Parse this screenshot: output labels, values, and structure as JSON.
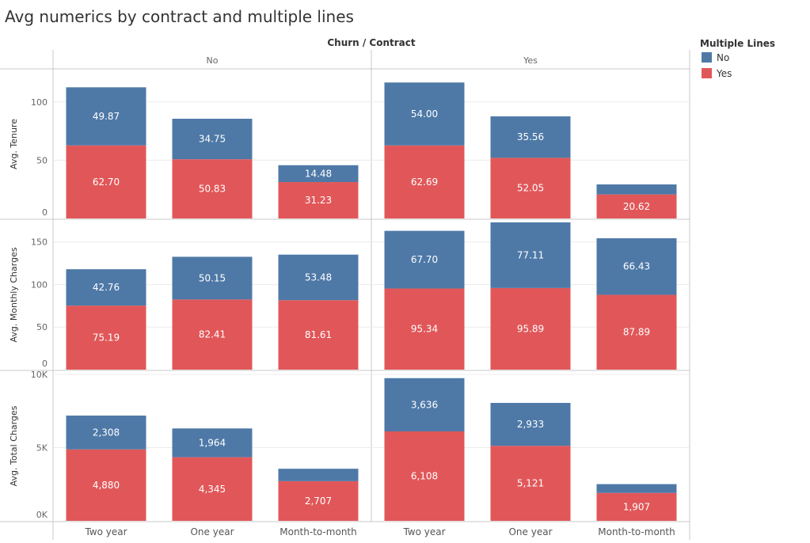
{
  "title": "Avg numerics by contract and multiple lines",
  "header": {
    "dimensions": "Churn  /  Contract"
  },
  "legend": {
    "title": "Multiple Lines",
    "items": [
      {
        "label": "No",
        "color": "#4e79a7"
      },
      {
        "label": "Yes",
        "color": "#e15759"
      }
    ]
  },
  "chart_data": {
    "type": "bar",
    "stacked": true,
    "legend_position": "top-right",
    "churn_groups": [
      "No",
      "Yes"
    ],
    "categories": [
      "Two year",
      "One year",
      "Month-to-month"
    ],
    "series_names": [
      "No",
      "Yes"
    ],
    "panels": [
      {
        "ylabel": "Avg. Tenure",
        "ylim": [
          0,
          125
        ],
        "yticks": [
          0,
          50,
          100
        ],
        "ytick_labels": [
          "0",
          "50",
          "100"
        ],
        "groups": [
          {
            "no": [
              49.87,
              34.75,
              14.48
            ],
            "yes": [
              62.7,
              50.83,
              31.23
            ],
            "no_labels": [
              "49.87",
              "34.75",
              "14.48"
            ],
            "yes_labels": [
              "62.70",
              "50.83",
              "31.23"
            ]
          },
          {
            "no": [
              54.0,
              35.56,
              8.6
            ],
            "yes": [
              62.69,
              52.05,
              20.62
            ],
            "no_labels": [
              "54.00",
              "35.56",
              ""
            ],
            "yes_labels": [
              "62.69",
              "52.05",
              "20.62"
            ]
          }
        ]
      },
      {
        "ylabel": "Avg. Monthly Charges",
        "ylim": [
          0,
          172
        ],
        "yticks": [
          0,
          50,
          100,
          150
        ],
        "ytick_labels": [
          "0",
          "50",
          "100",
          "150"
        ],
        "groups": [
          {
            "no": [
              42.76,
              50.15,
              53.48
            ],
            "yes": [
              75.19,
              82.41,
              81.61
            ],
            "no_labels": [
              "42.76",
              "50.15",
              "53.48"
            ],
            "yes_labels": [
              "75.19",
              "82.41",
              "81.61"
            ]
          },
          {
            "no": [
              67.7,
              77.11,
              66.43
            ],
            "yes": [
              95.34,
              95.89,
              87.89
            ],
            "no_labels": [
              "67.70",
              "77.11",
              "66.43"
            ],
            "yes_labels": [
              "95.34",
              "95.89",
              "87.89"
            ]
          }
        ]
      },
      {
        "ylabel": "Avg. Total Charges",
        "ylim": [
          0,
          10000
        ],
        "yticks": [
          0,
          5000,
          10000
        ],
        "ytick_labels": [
          "0K",
          "5K",
          "10K"
        ],
        "groups": [
          {
            "no": [
              2308,
              1964,
              850
            ],
            "yes": [
              4880,
              4345,
              2707
            ],
            "no_labels": [
              "2,308",
              "1,964",
              ""
            ],
            "yes_labels": [
              "4,880",
              "4,345",
              "2,707"
            ]
          },
          {
            "no": [
              3636,
              2933,
              600
            ],
            "yes": [
              6108,
              5121,
              1907
            ],
            "no_labels": [
              "3,636",
              "2,933",
              ""
            ],
            "yes_labels": [
              "6,108",
              "5,121",
              "1,907"
            ]
          }
        ]
      }
    ]
  }
}
